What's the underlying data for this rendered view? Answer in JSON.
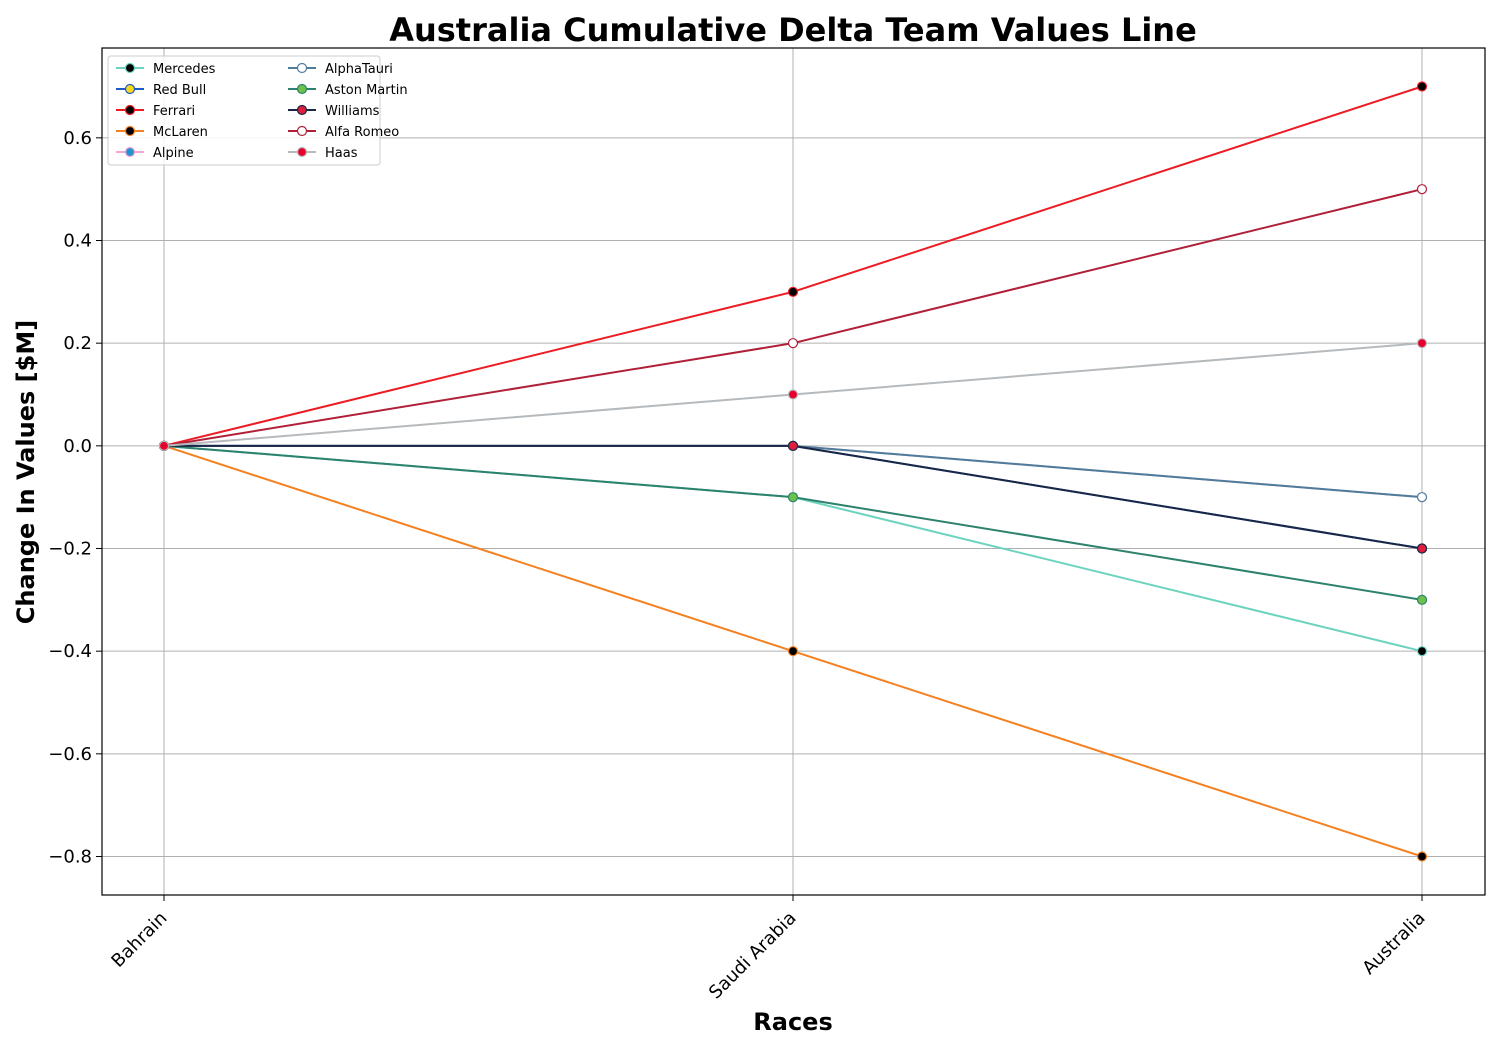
{
  "chart_data": {
    "type": "line",
    "title": "Australia Cumulative Delta Team Values Line",
    "xlabel": "Races",
    "ylabel": "Change In Values [$M]",
    "categories": [
      "Bahrain",
      "Saudi Arabia",
      "Australia"
    ],
    "ylim": [
      -0.875,
      0.775
    ],
    "yticks": [
      -0.8,
      -0.6,
      -0.4,
      -0.2,
      0.0,
      0.2,
      0.4,
      0.6
    ],
    "grid": true,
    "legend_position": "top-left",
    "legend_columns": 2,
    "series": [
      {
        "name": "Mercedes",
        "values": [
          0.0,
          -0.1,
          -0.4
        ],
        "line_color": "#6cd3bf",
        "marker_fill": "#000000",
        "marker_edge": "#6cd3bf"
      },
      {
        "name": "Red Bull",
        "values": [
          0.0,
          0.0,
          -0.2
        ],
        "line_color": "#1e5bc6",
        "marker_fill": "#f9d71c",
        "marker_edge": "#1e5bc6"
      },
      {
        "name": "Ferrari",
        "values": [
          0.0,
          0.3,
          0.7
        ],
        "line_color": "#ed1c24",
        "marker_fill": "#000000",
        "marker_edge": "#ed1c24"
      },
      {
        "name": "McLaren",
        "values": [
          0.0,
          -0.4,
          -0.8
        ],
        "line_color": "#f58020",
        "marker_fill": "#000000",
        "marker_edge": "#f58020"
      },
      {
        "name": "Alpine",
        "values": [
          0.0,
          0.0,
          -0.1
        ],
        "line_color": "#f4a6cf",
        "marker_fill": "#2293d1",
        "marker_edge": "#f4a6cf"
      },
      {
        "name": "AlphaTauri",
        "values": [
          0.0,
          0.0,
          -0.1
        ],
        "line_color": "#4e7c9b",
        "marker_fill": "#ffffff",
        "marker_edge": "#4e7c9b"
      },
      {
        "name": "Aston Martin",
        "values": [
          0.0,
          -0.1,
          -0.3
        ],
        "line_color": "#2d826d",
        "marker_fill": "#6cc24a",
        "marker_edge": "#2d826d"
      },
      {
        "name": "Williams",
        "values": [
          0.0,
          0.0,
          -0.2
        ],
        "line_color": "#1a2744",
        "marker_fill": "#e01e3c",
        "marker_edge": "#1a2744"
      },
      {
        "name": "Alfa Romeo",
        "values": [
          0.0,
          0.2,
          0.5
        ],
        "line_color": "#b12039",
        "marker_fill": "#ffffff",
        "marker_edge": "#b12039"
      },
      {
        "name": "Haas",
        "values": [
          0.0,
          0.1,
          0.2
        ],
        "line_color": "#b6babd",
        "marker_fill": "#e6002b",
        "marker_edge": "#b6babd"
      }
    ]
  }
}
